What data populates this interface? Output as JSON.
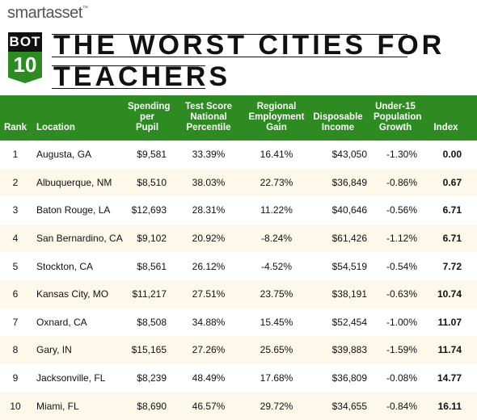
{
  "header": {
    "logo": "smartasset",
    "trademark": "™",
    "badge_top": "BOT",
    "badge_bottom": "10",
    "title_lines": [
      "THE WORST CITIES FOR",
      "TEACHERS"
    ]
  },
  "table": {
    "columns": [
      "Rank",
      "Location",
      "Spending per Pupil",
      "Test Score National Percentile",
      "Regional Employment Gain",
      "Disposable Income",
      "Under-15 Population Growth",
      "Index"
    ],
    "rows": [
      [
        "1",
        "Augusta, GA",
        "$9,581",
        "33.39%",
        "16.41%",
        "$43,050",
        "-1.30%",
        "0.00"
      ],
      [
        "2",
        "Albuquerque, NM",
        "$8,510",
        "38.03%",
        "22.73%",
        "$36,849",
        "-0.86%",
        "0.67"
      ],
      [
        "3",
        "Baton Rouge, LA",
        "$12,693",
        "28.31%",
        "11.22%",
        "$40,646",
        "-0.56%",
        "6.71"
      ],
      [
        "4",
        "San Bernardino, CA",
        "$9,102",
        "20.92%",
        "-8.24%",
        "$61,426",
        "-1.12%",
        "6.71"
      ],
      [
        "5",
        "Stockton, CA",
        "$8,561",
        "26.12%",
        "-4.52%",
        "$54,519",
        "-0.54%",
        "7.72"
      ],
      [
        "6",
        "Kansas City, MO",
        "$11,217",
        "27.51%",
        "23.75%",
        "$38,191",
        "-0.63%",
        "10.74"
      ],
      [
        "7",
        "Oxnard, CA",
        "$8,508",
        "34.88%",
        "15.45%",
        "$52,454",
        "-1.00%",
        "11.07"
      ],
      [
        "8",
        "Gary, IN",
        "$15,165",
        "27.26%",
        "25.65%",
        "$39,883",
        "-1.59%",
        "11.74"
      ],
      [
        "9",
        "Jacksonville, FL",
        "$8,239",
        "48.49%",
        "17.68%",
        "$36,809",
        "-0.08%",
        "14.77"
      ],
      [
        "10",
        "Miami, FL",
        "$8,690",
        "46.57%",
        "29.72%",
        "$34,655",
        "-0.84%",
        "16.11"
      ]
    ]
  }
}
